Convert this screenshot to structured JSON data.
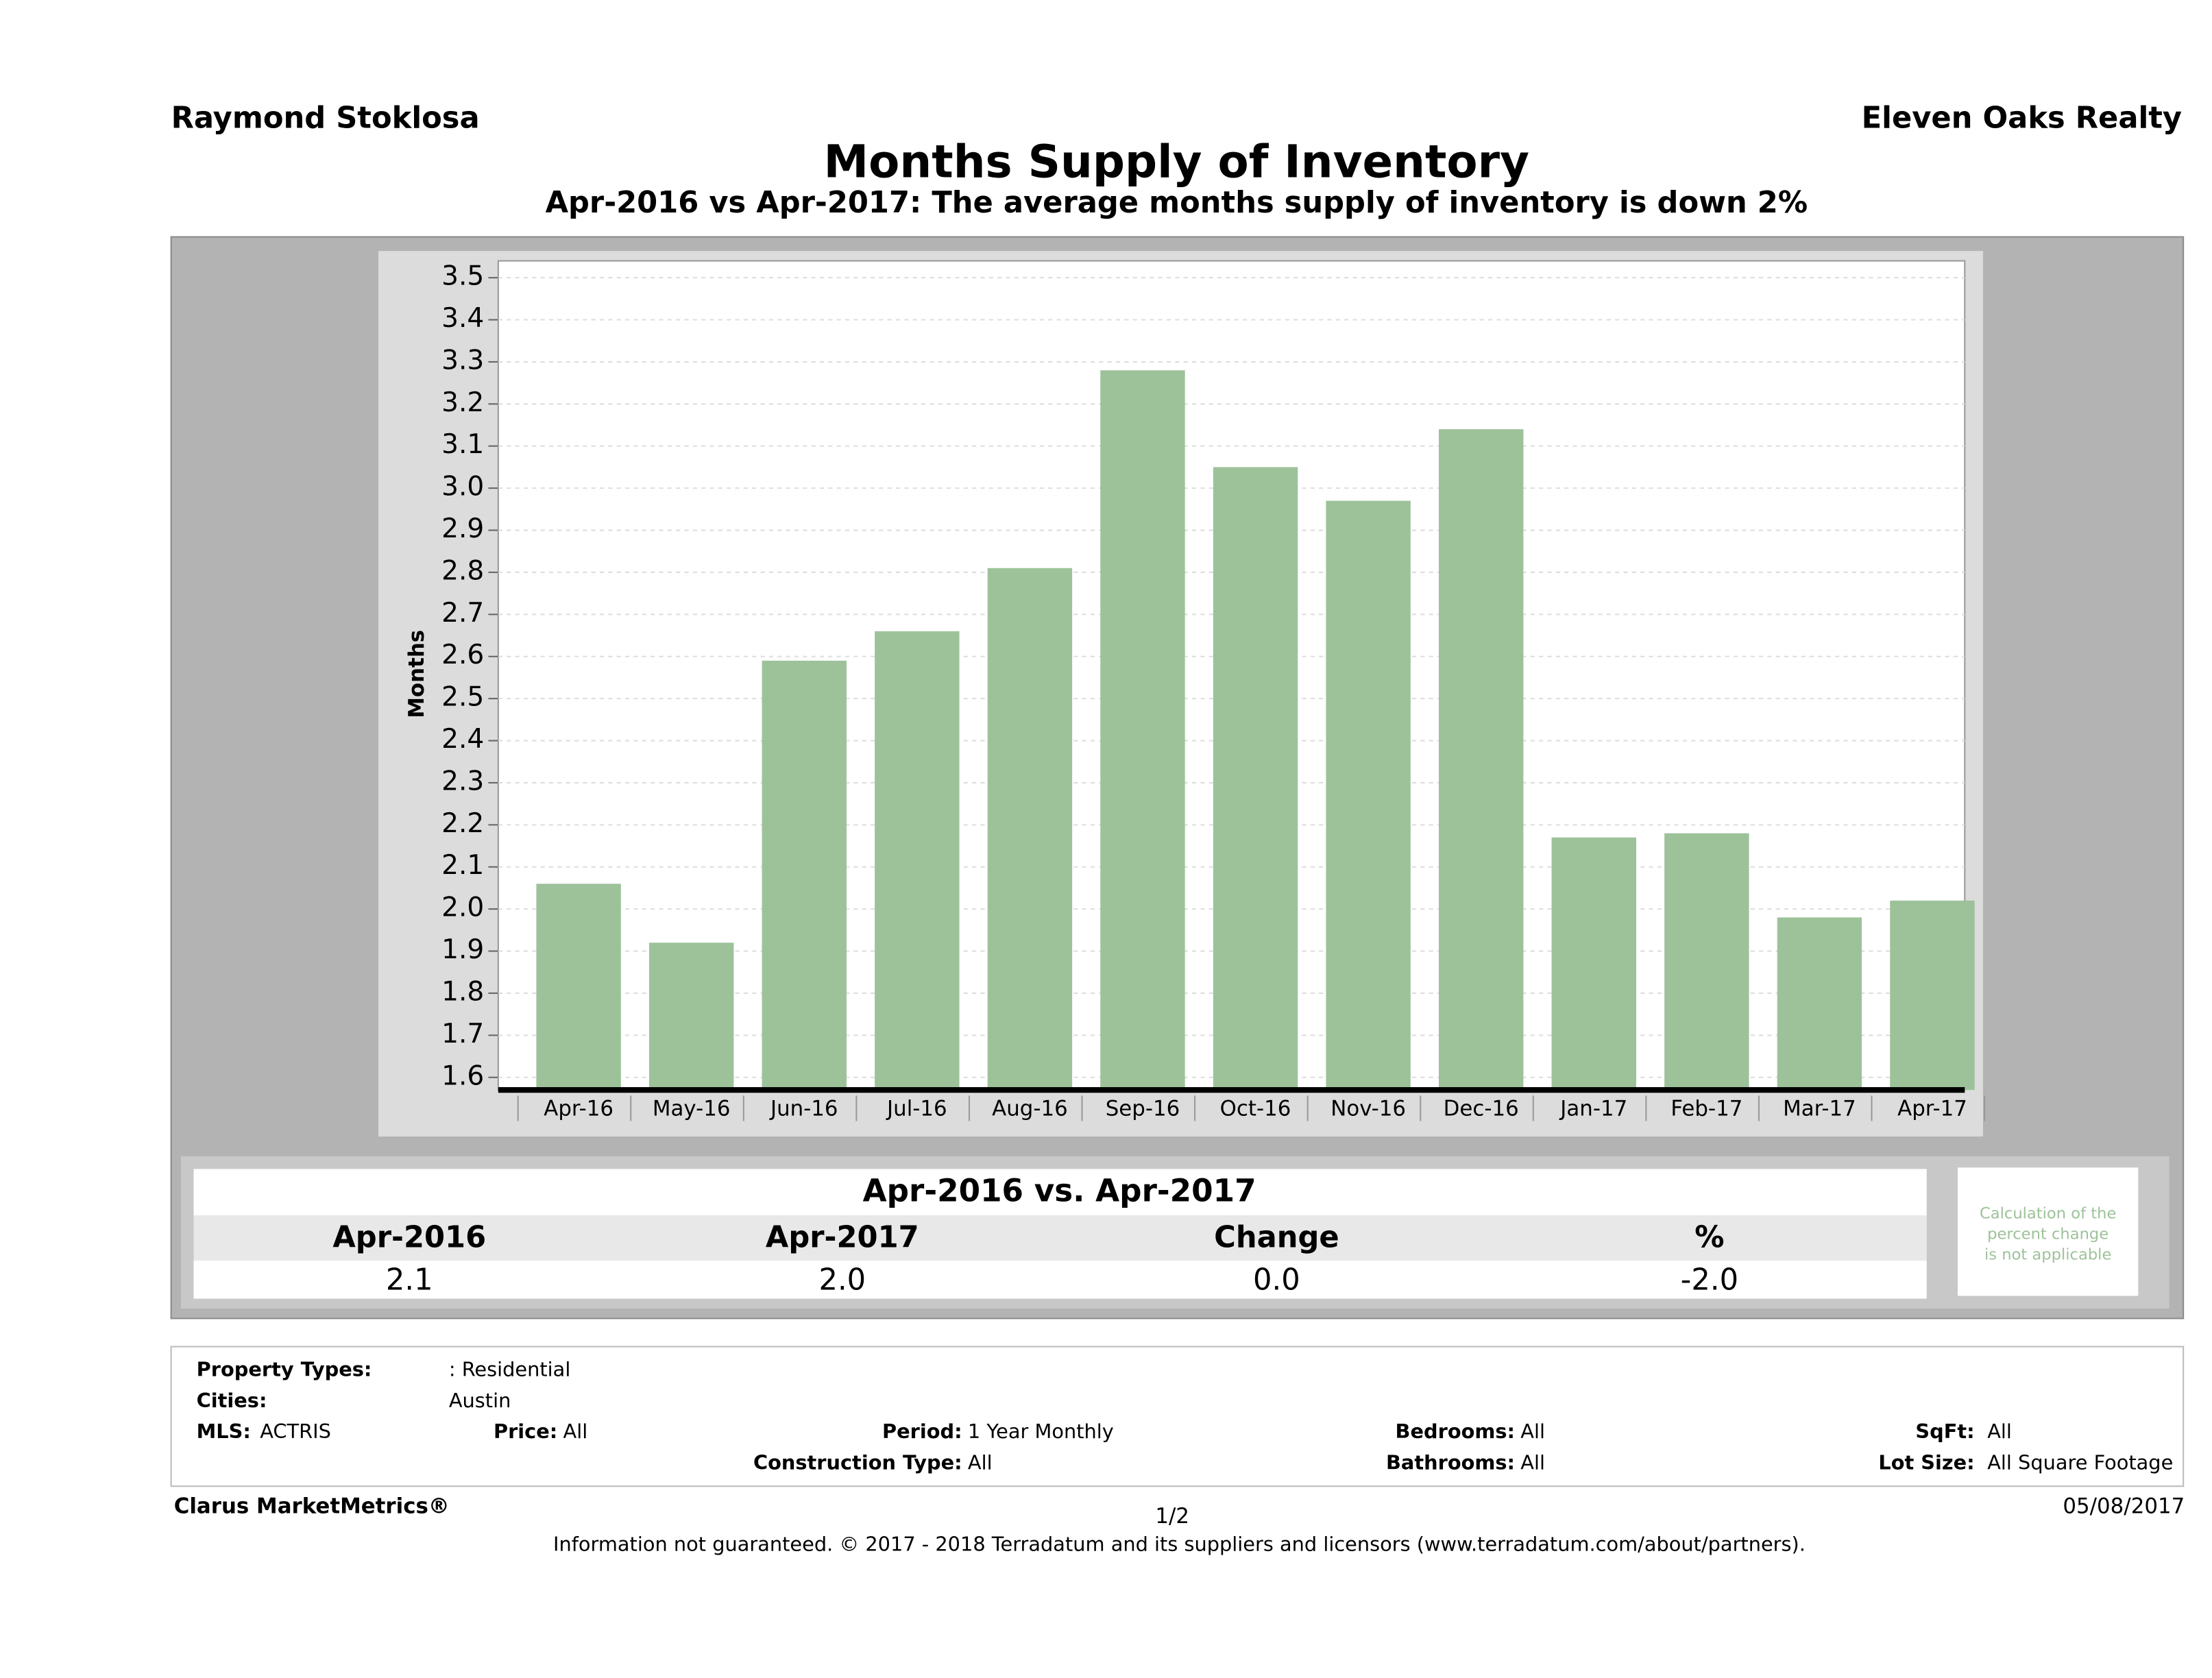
{
  "header": {
    "author": "Raymond Stoklosa",
    "company": "Eleven Oaks Realty"
  },
  "chart_data": {
    "type": "bar",
    "title": "Months Supply of Inventory",
    "subtitle": "Apr-2016 vs Apr-2017: The average months supply of inventory is down 2%",
    "y_label": "Months",
    "categories": [
      "Apr-16",
      "May-16",
      "Jun-16",
      "Jul-16",
      "Aug-16",
      "Sep-16",
      "Oct-16",
      "Nov-16",
      "Dec-16",
      "Jan-17",
      "Feb-17",
      "Mar-17",
      "Apr-17"
    ],
    "values": [
      2.06,
      1.92,
      2.59,
      2.66,
      2.81,
      3.28,
      3.05,
      2.97,
      3.14,
      2.17,
      2.18,
      1.98,
      2.02
    ],
    "color": "#9dc29a",
    "ylim": [
      1.57,
      3.54
    ],
    "yticks": [
      1.6,
      1.7,
      1.8,
      1.9,
      {
        "value": 2,
        "label": "2.0"
      },
      2.1,
      2.2,
      2.3,
      2.4,
      2.5,
      2.6,
      2.7,
      2.8,
      2.9,
      {
        "value": 3,
        "label": "3.0"
      },
      3.1,
      3.2,
      3.3,
      3.4,
      3.5
    ],
    "grid": true
  },
  "table": {
    "title": "Apr-2016 vs. Apr-2017",
    "headers": [
      "Apr-2016",
      "Apr-2017",
      "Change",
      "%"
    ],
    "values": [
      "2.1",
      "2.0",
      "0.0",
      "-2.0"
    ],
    "note": [
      "Calculation of the",
      "percent change",
      "is not applicable"
    ]
  },
  "filters": {
    "property_types": {
      "label": "Property Types:",
      "value": ": Residential"
    },
    "cities": {
      "label": "Cities:",
      "value": "Austin"
    },
    "mls": {
      "label": "MLS:",
      "value": "ACTRIS"
    },
    "price": {
      "label": "Price:",
      "value": "All"
    },
    "period": {
      "label": "Period:",
      "value": "1 Year Monthly"
    },
    "bedrooms": {
      "label": "Bedrooms:",
      "value": "All"
    },
    "sqft": {
      "label": "SqFt:",
      "value": "All"
    },
    "construction": {
      "label": "Construction Type:",
      "value": "All"
    },
    "bathrooms": {
      "label": "Bathrooms:",
      "value": "All"
    },
    "lot_size": {
      "label": "Lot Size:",
      "value": "All Square Footage"
    }
  },
  "footer": {
    "brand": "Clarus MarketMetrics®",
    "page": "1/2",
    "date": "05/08/2017",
    "disclaimer": "Information not guaranteed. © 2017 - 2018 Terradatum and its suppliers and licensors (www.terradatum.com/about/partners)."
  }
}
